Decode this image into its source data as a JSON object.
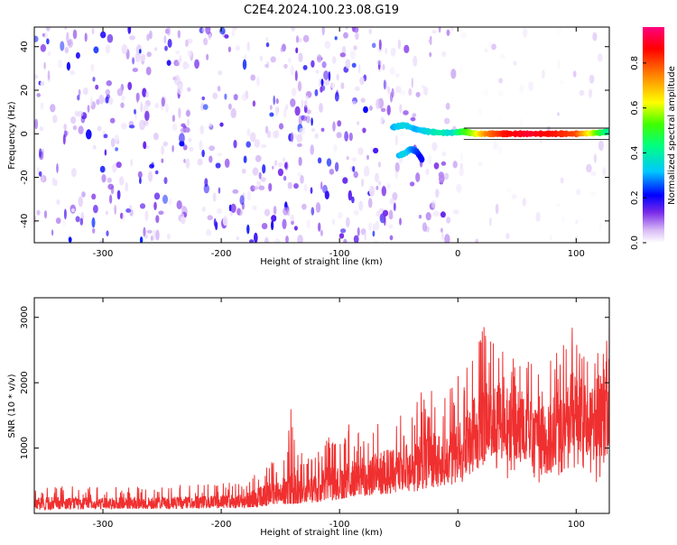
{
  "title": "C2E4.2024.100.23.08.G19",
  "chart_data": [
    {
      "type": "heatmap",
      "xlabel": "Height of straight line (km)",
      "ylabel": "Frequency (Hz)",
      "xlim": [
        -358,
        128
      ],
      "ylim": [
        -50,
        49
      ],
      "x_ticks": [
        -300,
        -200,
        -100,
        0,
        100
      ],
      "y_ticks": [
        -40,
        -20,
        0,
        20,
        40
      ],
      "grid": false,
      "colorbar": {
        "label": "Normalized spectral amplitude",
        "range": [
          0,
          0.96
        ],
        "ticks": [
          0.0,
          0.2,
          0.4,
          0.6,
          0.8
        ],
        "tick_labels": [
          "0.0",
          "0.2",
          "0.4",
          "0.6",
          "0.8"
        ]
      },
      "regions": [
        {
          "description": "dense noise",
          "x_range": [
            -358,
            -60
          ],
          "y_range": [
            -50,
            49
          ],
          "amplitude": 0.12
        },
        {
          "description": "sparser noise",
          "x_range": [
            -60,
            0
          ],
          "y_range": [
            -50,
            49
          ],
          "amplitude": 0.08
        },
        {
          "description": "faint scatter",
          "x_range": [
            0,
            128
          ],
          "y_range": [
            -50,
            49
          ],
          "amplitude": 0.03
        }
      ],
      "ridge": {
        "x": [
          -55,
          -45,
          -35,
          -25,
          -15,
          -5,
          5,
          15,
          25,
          40,
          60,
          80,
          100,
          120,
          128
        ],
        "y": [
          3,
          4,
          2,
          1,
          0.5,
          0.5,
          1,
          0,
          0,
          0,
          0,
          0,
          0,
          0.5,
          1
        ],
        "amplitude": [
          0.3,
          0.35,
          0.3,
          0.35,
          0.4,
          0.35,
          0.5,
          0.6,
          0.75,
          0.85,
          0.9,
          0.85,
          0.8,
          0.5,
          0.4
        ]
      },
      "side_lobe": {
        "x": [
          -50,
          -45,
          -40,
          -35,
          -30
        ],
        "y": [
          -10,
          -9,
          -7,
          -8,
          -12
        ],
        "amplitude": [
          0.3,
          0.35,
          0.3,
          0.25,
          0.2
        ]
      }
    },
    {
      "type": "line",
      "xlabel": "Height of straight line (km)",
      "ylabel": "SNR (10 * v/v)",
      "xlim": [
        -358,
        128
      ],
      "ylim": [
        0,
        3300
      ],
      "x_ticks": [
        -300,
        -200,
        -100,
        0,
        100
      ],
      "y_ticks": [
        1000,
        2000,
        3000
      ],
      "grid": false,
      "color": "#f03030",
      "series": [
        {
          "x": [
            -358,
            -340,
            -320,
            -300,
            -280,
            -260,
            -240,
            -220,
            -200,
            -180,
            -170,
            -160,
            -150,
            -140,
            -130,
            -120,
            -110,
            -100,
            -90,
            -80,
            -70,
            -60,
            -50,
            -40,
            -30,
            -20,
            -10,
            0,
            10,
            20,
            30,
            40,
            50,
            60,
            70,
            80,
            90,
            100,
            110,
            120,
            128
          ],
          "y": [
            150,
            160,
            155,
            150,
            160,
            155,
            160,
            165,
            175,
            190,
            220,
            300,
            330,
            300,
            340,
            380,
            450,
            400,
            560,
            500,
            600,
            620,
            650,
            700,
            800,
            850,
            800,
            900,
            1100,
            1300,
            1500,
            1400,
            1400,
            1300,
            1100,
            1200,
            1500,
            1600,
            1400,
            1500,
            1600
          ],
          "y_max": [
            400,
            420,
            430,
            400,
            420,
            430,
            450,
            450,
            470,
            500,
            700,
            850,
            700,
            1850,
            800,
            1000,
            1200,
            1300,
            1400,
            1150,
            1450,
            1600,
            1500,
            1800,
            1900,
            2000,
            1850,
            2100,
            2500,
            2950,
            2800,
            2400,
            2700,
            2500,
            2300,
            2600,
            2950,
            2800,
            2400,
            2850,
            3300
          ],
          "y_min": [
            50,
            60,
            60,
            70,
            70,
            70,
            75,
            80,
            80,
            90,
            100,
            120,
            140,
            150,
            160,
            170,
            200,
            220,
            250,
            260,
            280,
            300,
            320,
            330,
            350,
            380,
            400,
            420,
            500,
            550,
            700,
            450,
            600,
            650,
            400,
            500,
            600,
            700,
            500,
            400,
            300
          ]
        }
      ]
    }
  ]
}
